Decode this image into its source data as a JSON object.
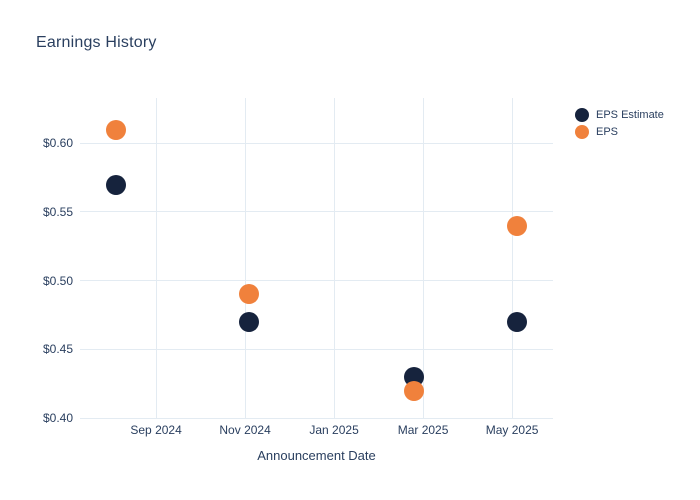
{
  "page": {
    "background_color": "#ffffff",
    "text_color": "#2a3f5f"
  },
  "chart_data": {
    "type": "scatter",
    "title": "Earnings History",
    "xlabel": "Announcement Date",
    "ylabel": "",
    "grid_on": true,
    "grid_color": "#e3ebf2",
    "legend_position": "right",
    "x_axis": {
      "tick_labels": [
        "Sep 2024",
        "Nov 2024",
        "Jan 2025",
        "Mar 2025",
        "May 2025"
      ],
      "tick_values_months": [
        0,
        2,
        4,
        6,
        8
      ],
      "range_months": [
        -1.71,
        8.92
      ],
      "month_zero_label": "Sep 2024"
    },
    "y_axis": {
      "tick_labels": [
        "$0.40",
        "$0.45",
        "$0.50",
        "$0.55",
        "$0.60"
      ],
      "tick_values": [
        0.4,
        0.45,
        0.5,
        0.55,
        0.6
      ],
      "range": [
        0.4,
        0.633
      ]
    },
    "series": [
      {
        "name": "EPS Estimate",
        "color": "#16233d",
        "marker": "circle",
        "points": [
          {
            "date": "Aug 2024",
            "x_month": -0.9,
            "value": 0.57
          },
          {
            "date": "Nov 2024",
            "x_month": 2.09,
            "value": 0.47
          },
          {
            "date": "Feb 2025",
            "x_month": 5.8,
            "value": 0.43
          },
          {
            "date": "May 2025",
            "x_month": 8.11,
            "value": 0.47
          }
        ]
      },
      {
        "name": "EPS",
        "color": "#f0813c",
        "marker": "circle",
        "points": [
          {
            "date": "Aug 2024",
            "x_month": -0.9,
            "value": 0.61
          },
          {
            "date": "Nov 2024",
            "x_month": 2.09,
            "value": 0.49
          },
          {
            "date": "Feb 2025",
            "x_month": 5.8,
            "value": 0.42
          },
          {
            "date": "May 2025",
            "x_month": 8.11,
            "value": 0.54
          }
        ]
      }
    ]
  }
}
